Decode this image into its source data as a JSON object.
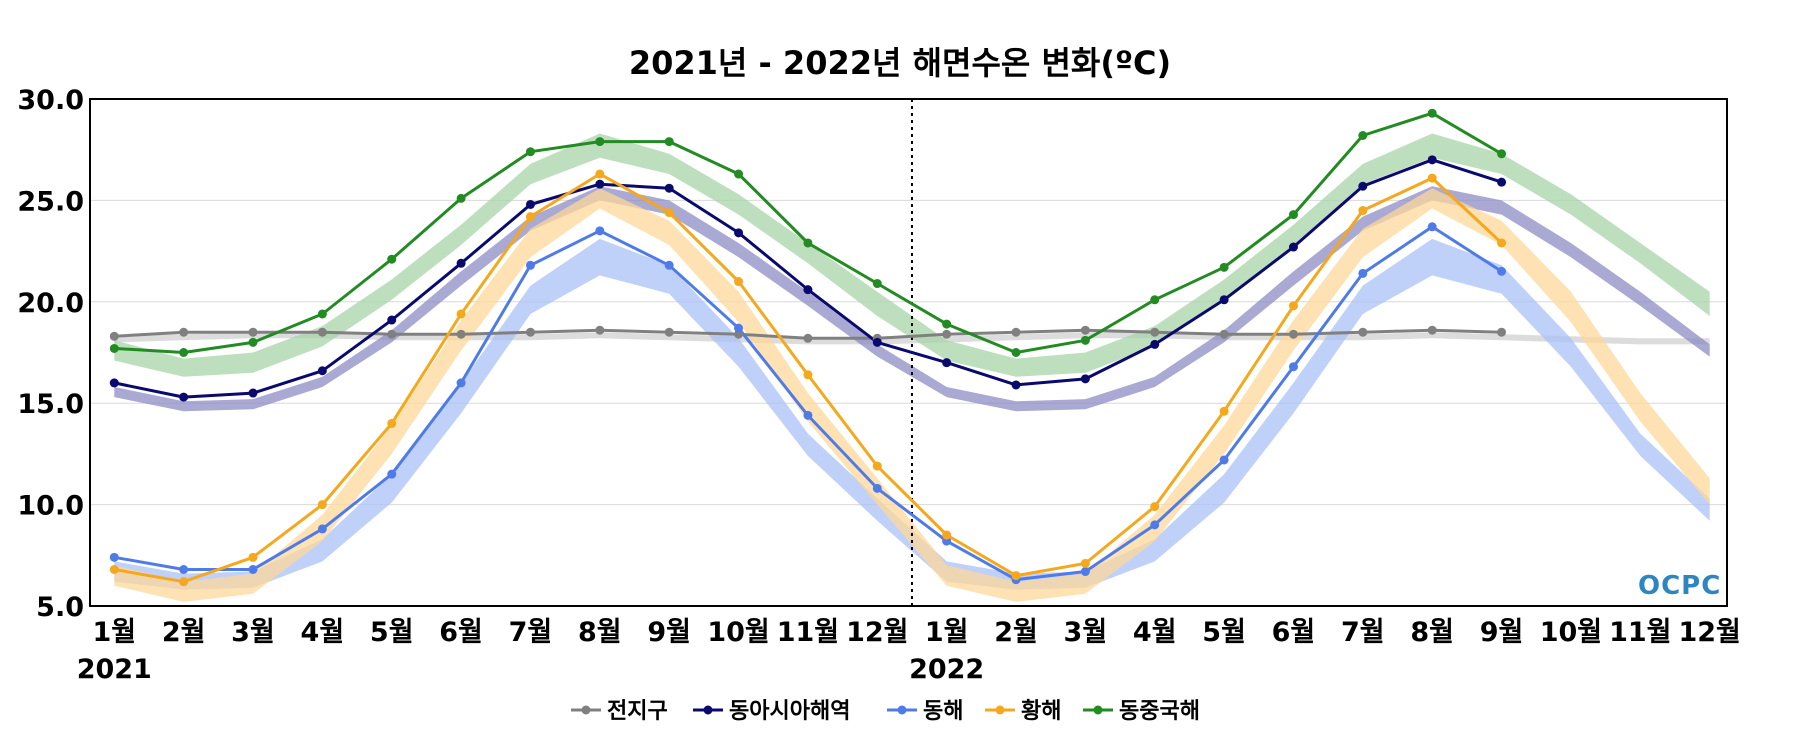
{
  "chart_data": {
    "type": "line",
    "title": "2021년 - 2022년 해면수온 변화(ºC)",
    "xlabel": "",
    "ylabel": "",
    "ylim": [
      5.0,
      30.0
    ],
    "yticks": [
      "5.0",
      "10.0",
      "15.0",
      "20.0",
      "25.0",
      "30.0"
    ],
    "categories": [
      "1월",
      "2월",
      "3월",
      "4월",
      "5월",
      "6월",
      "7월",
      "8월",
      "9월",
      "10월",
      "11월",
      "12월",
      "1월",
      "2월",
      "3월",
      "4월",
      "5월",
      "6월",
      "7월",
      "8월",
      "9월",
      "10월",
      "11월",
      "12월"
    ],
    "year_labels": [
      {
        "index": 0,
        "label": "2021"
      },
      {
        "index": 12,
        "label": "2022"
      }
    ],
    "divider_after_index": 11.5,
    "grid": true,
    "legend_position": "bottom",
    "logo": "OCPC",
    "series": [
      {
        "name": "전지구",
        "color": "#808080",
        "band_color": "#d0d0d0",
        "values": [
          18.3,
          18.5,
          18.5,
          18.5,
          18.4,
          18.4,
          18.5,
          18.6,
          18.5,
          18.4,
          18.2,
          18.2,
          18.4,
          18.5,
          18.6,
          18.5,
          18.4,
          18.4,
          18.5,
          18.6,
          18.5,
          null,
          null,
          null
        ],
        "band_lower": [
          18.0,
          18.1,
          18.2,
          18.2,
          18.1,
          18.1,
          18.1,
          18.2,
          18.1,
          18.0,
          17.9,
          17.9,
          18.0,
          18.1,
          18.2,
          18.2,
          18.1,
          18.1,
          18.1,
          18.2,
          18.1,
          18.0,
          17.9,
          17.9
        ],
        "band_upper": [
          18.3,
          18.4,
          18.5,
          18.5,
          18.4,
          18.4,
          18.4,
          18.5,
          18.4,
          18.3,
          18.2,
          18.2,
          18.3,
          18.4,
          18.5,
          18.5,
          18.4,
          18.4,
          18.4,
          18.5,
          18.4,
          18.3,
          18.2,
          18.2
        ]
      },
      {
        "name": "동아시아해역",
        "color": "#0a0a6e",
        "band_color": "#8c8cc4",
        "values": [
          16.0,
          15.3,
          15.5,
          16.6,
          19.1,
          21.9,
          24.8,
          25.8,
          25.6,
          23.4,
          20.6,
          18.0,
          17.0,
          15.9,
          16.2,
          17.9,
          20.1,
          22.7,
          25.7,
          27.0,
          25.9,
          null,
          null,
          null
        ],
        "band_lower": [
          15.3,
          14.6,
          14.7,
          15.8,
          18.0,
          20.8,
          23.5,
          25.0,
          24.3,
          22.2,
          19.8,
          17.3,
          15.3,
          14.6,
          14.7,
          15.8,
          18.0,
          20.8,
          23.5,
          25.0,
          24.3,
          22.2,
          19.8,
          17.3
        ],
        "band_upper": [
          15.8,
          15.1,
          15.2,
          16.3,
          18.6,
          21.5,
          24.2,
          25.7,
          25.0,
          22.9,
          20.5,
          17.9,
          15.8,
          15.1,
          15.2,
          16.3,
          18.6,
          21.5,
          24.2,
          25.7,
          25.0,
          22.9,
          20.5,
          17.9
        ]
      },
      {
        "name": "동해",
        "color": "#4f7be8",
        "band_color": "#a9c0f7",
        "values": [
          7.4,
          6.8,
          6.8,
          8.8,
          11.5,
          16.0,
          21.8,
          23.5,
          21.8,
          18.7,
          14.4,
          10.8,
          8.2,
          6.3,
          6.7,
          9.0,
          12.2,
          16.8,
          21.4,
          23.7,
          21.5,
          null,
          null,
          null
        ],
        "band_lower": [
          6.2,
          5.8,
          5.9,
          7.2,
          10.1,
          14.5,
          19.4,
          21.3,
          20.4,
          16.8,
          12.4,
          9.2,
          6.2,
          5.8,
          5.9,
          7.2,
          10.1,
          14.5,
          19.4,
          21.3,
          20.4,
          16.8,
          12.4,
          9.2
        ],
        "band_upper": [
          7.2,
          6.6,
          6.7,
          8.3,
          11.5,
          16.0,
          20.8,
          23.1,
          21.8,
          18.2,
          13.5,
          10.3,
          7.2,
          6.6,
          6.7,
          8.3,
          11.5,
          16.0,
          20.8,
          23.1,
          21.8,
          18.2,
          13.5,
          10.3
        ]
      },
      {
        "name": "황해",
        "color": "#f5a81c",
        "band_color": "#fdd89a",
        "values": [
          6.8,
          6.2,
          7.4,
          10.0,
          14.0,
          19.4,
          24.2,
          26.3,
          24.4,
          21.0,
          16.4,
          11.9,
          8.5,
          6.5,
          7.1,
          9.9,
          14.6,
          19.8,
          24.5,
          26.1,
          22.9,
          null,
          null,
          null
        ],
        "band_lower": [
          6.0,
          5.2,
          5.6,
          8.2,
          12.5,
          17.6,
          22.2,
          24.6,
          22.8,
          19.0,
          14.1,
          10.0,
          6.0,
          5.2,
          5.6,
          8.2,
          12.5,
          17.6,
          22.2,
          24.6,
          22.8,
          19.0,
          14.1,
          10.0
        ],
        "band_upper": [
          7.0,
          6.2,
          6.6,
          9.5,
          13.9,
          19.1,
          23.6,
          25.6,
          24.0,
          20.5,
          15.5,
          11.3,
          7.0,
          6.2,
          6.6,
          9.5,
          13.9,
          19.1,
          23.6,
          25.6,
          24.0,
          20.5,
          15.5,
          11.3
        ]
      },
      {
        "name": "동중국해",
        "color": "#228b22",
        "band_color": "#a8d4a8",
        "values": [
          17.7,
          17.5,
          18.0,
          19.4,
          22.1,
          25.1,
          27.4,
          27.9,
          27.9,
          26.3,
          22.9,
          20.9,
          18.9,
          17.5,
          18.1,
          20.1,
          21.7,
          24.3,
          28.2,
          29.3,
          27.3,
          null,
          null,
          null
        ],
        "band_lower": [
          17.1,
          16.3,
          16.5,
          17.8,
          20.1,
          22.8,
          25.8,
          27.1,
          26.3,
          24.3,
          21.9,
          19.3,
          17.1,
          16.3,
          16.5,
          17.8,
          20.1,
          22.8,
          25.8,
          27.1,
          26.3,
          24.3,
          21.9,
          19.3
        ],
        "band_upper": [
          18.1,
          17.2,
          17.5,
          18.8,
          21.1,
          23.8,
          26.8,
          28.3,
          27.3,
          25.3,
          22.9,
          20.5,
          18.1,
          17.2,
          17.5,
          18.8,
          21.1,
          23.8,
          26.8,
          28.3,
          27.3,
          25.3,
          22.9,
          20.5
        ]
      }
    ]
  }
}
